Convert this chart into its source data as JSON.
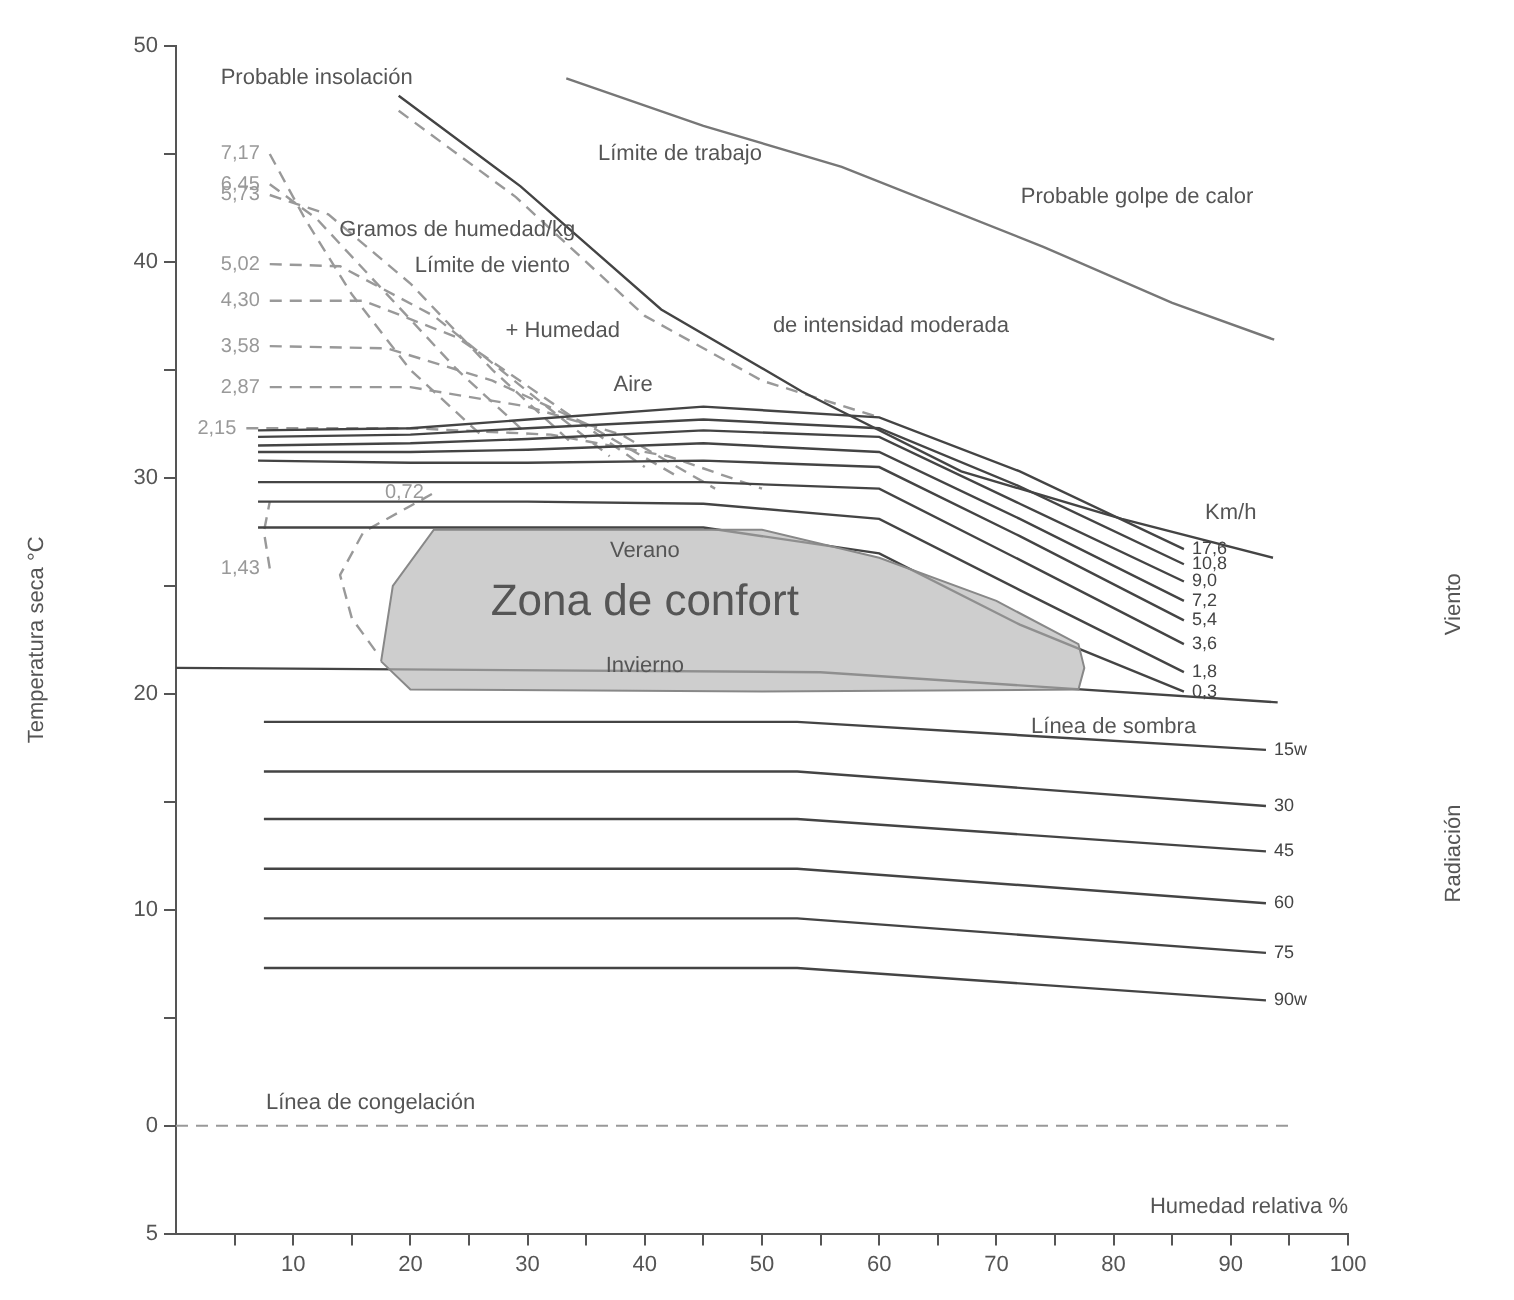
{
  "chart_data": {
    "type": "line",
    "xlabel": "Humedad relativa %",
    "ylabel": "Temperatura seca °C",
    "xlim": [
      0,
      100
    ],
    "ylim": [
      -5,
      50
    ],
    "xticks": [
      {
        "value": 5,
        "label": null
      },
      10,
      {
        "value": 15,
        "label": null
      },
      20,
      {
        "value": 25,
        "label": null
      },
      30,
      {
        "value": 35,
        "label": null
      },
      40,
      {
        "value": 45,
        "label": null
      },
      50,
      {
        "value": 55,
        "label": null
      },
      60,
      {
        "value": 65,
        "label": null
      },
      70,
      {
        "value": 75,
        "label": null
      },
      80,
      {
        "value": 85,
        "label": null
      },
      90,
      {
        "value": 95,
        "label": null
      },
      100
    ],
    "yticks": [
      {
        "value": -5,
        "label": "5"
      },
      0,
      {
        "value": 5,
        "label": null
      },
      10,
      {
        "value": 15,
        "label": null
      },
      20,
      {
        "value": 25,
        "label": null
      },
      30,
      {
        "value": 35,
        "label": null
      },
      40,
      {
        "value": 45,
        "label": null
      },
      50
    ],
    "legend": false,
    "series": [
      {
        "type": "area",
        "color": "#b5b5b5",
        "x": [
          17.5,
          18.5,
          22,
          50,
          60,
          70,
          77,
          77.5,
          77,
          50,
          20,
          17.5
        ],
        "values": [
          21.5,
          25,
          27.6,
          27.6,
          26.3,
          24.3,
          22.3,
          21.2,
          20.2,
          20.1,
          20.2,
          21.5
        ]
      },
      {
        "name": "17,6",
        "color": "#444444",
        "x": [
          7,
          20,
          30,
          45,
          60,
          72,
          86
        ],
        "values": [
          32.2,
          32.3,
          32.7,
          33.3,
          32.8,
          30.3,
          26.7
        ]
      },
      {
        "name": "10,8",
        "color": "#444444",
        "x": [
          7,
          20,
          30,
          45,
          60,
          72,
          86
        ],
        "values": [
          31.9,
          32.0,
          32.3,
          32.7,
          32.3,
          29.6,
          26.0
        ]
      },
      {
        "name": "9,0",
        "color": "#444444",
        "x": [
          7,
          20,
          30,
          45,
          60,
          72,
          86
        ],
        "values": [
          31.5,
          31.6,
          31.8,
          32.2,
          31.9,
          28.8,
          25.2
        ]
      },
      {
        "name": "7,2",
        "color": "#444444",
        "x": [
          7,
          20,
          30,
          45,
          60,
          72,
          86
        ],
        "values": [
          31.2,
          31.2,
          31.3,
          31.6,
          31.2,
          28.1,
          24.3
        ]
      },
      {
        "name": "5,4",
        "color": "#444444",
        "x": [
          7,
          20,
          30,
          45,
          60,
          72,
          86
        ],
        "values": [
          30.8,
          30.7,
          30.7,
          30.8,
          30.5,
          27.3,
          23.4
        ]
      },
      {
        "name": "3,6",
        "color": "#444444",
        "x": [
          7,
          20,
          30,
          45,
          60,
          72,
          86
        ],
        "values": [
          29.8,
          29.8,
          29.8,
          29.8,
          29.5,
          26.2,
          22.3
        ]
      },
      {
        "name": "1,8",
        "color": "#444444",
        "x": [
          7,
          20,
          30,
          45,
          60,
          72,
          86
        ],
        "values": [
          28.9,
          28.9,
          28.9,
          28.8,
          28.1,
          24.8,
          21.0
        ]
      },
      {
        "name": "0,3",
        "color": "#444444",
        "x": [
          7,
          20,
          30,
          45,
          60,
          72,
          86
        ],
        "values": [
          27.7,
          27.7,
          27.7,
          27.7,
          26.5,
          23.2,
          20.1
        ]
      },
      {
        "color": "#444444",
        "x": [
          0,
          55,
          94
        ],
        "values": [
          21.2,
          21.0,
          19.6
        ]
      },
      {
        "name": "15w",
        "color": "#444444",
        "x": [
          7.5,
          53,
          93
        ],
        "values": [
          18.7,
          18.7,
          17.4
        ]
      },
      {
        "name": "30",
        "color": "#444444",
        "x": [
          7.5,
          53,
          93
        ],
        "values": [
          16.4,
          16.4,
          14.8
        ]
      },
      {
        "name": "45",
        "color": "#444444",
        "x": [
          7.5,
          53,
          93
        ],
        "values": [
          14.2,
          14.2,
          12.7
        ]
      },
      {
        "name": "60",
        "color": "#444444",
        "x": [
          7.5,
          53,
          93
        ],
        "values": [
          11.9,
          11.9,
          10.3
        ]
      },
      {
        "name": "75",
        "color": "#444444",
        "x": [
          7.5,
          53,
          93
        ],
        "values": [
          9.6,
          9.6,
          8.0
        ]
      },
      {
        "name": "90w",
        "color": "#444444",
        "x": [
          7.5,
          53,
          93
        ],
        "values": [
          7.3,
          7.3,
          5.8
        ]
      },
      {
        "color": "#444444",
        "x": [
          19,
          29.4,
          41.4,
          53.4,
          67,
          80.7,
          93.6
        ],
        "values": [
          47.7,
          43.5,
          37.8,
          34,
          30.3,
          28.1,
          26.3
        ]
      },
      {
        "color": "#999999",
        "line_style": "dashed",
        "x": [
          19,
          29,
          40,
          50,
          60
        ],
        "values": [
          47,
          43,
          37.5,
          34.5,
          32.8
        ]
      },
      {
        "color": "#777777",
        "x": [
          33.3,
          45,
          56.8,
          74,
          85,
          93.7
        ],
        "values": [
          48.5,
          46.3,
          44.4,
          40.7,
          38.1,
          36.4
        ]
      },
      {
        "name": "7,17",
        "color": "#999999",
        "line_style": "dashed",
        "x": [
          8,
          11,
          15,
          20,
          26
        ],
        "values": [
          45,
          42,
          38.5,
          35,
          32
        ]
      },
      {
        "name": "6,45",
        "color": "#999999",
        "line_style": "dashed",
        "x": [
          8,
          12,
          18,
          24,
          30
        ],
        "values": [
          43.6,
          42,
          38.5,
          35,
          32
        ]
      },
      {
        "name": "5,73",
        "color": "#999999",
        "line_style": "dashed",
        "x": [
          8,
          13,
          20,
          27,
          34
        ],
        "values": [
          43.1,
          42.2,
          39,
          35,
          31.5
        ]
      },
      {
        "name": "5,02",
        "color": "#999999",
        "line_style": "dashed",
        "x": [
          8,
          14,
          22,
          30,
          37
        ],
        "values": [
          39.9,
          39.8,
          37.5,
          34,
          31
        ]
      },
      {
        "name": "4,30",
        "color": "#999999",
        "line_style": "dashed",
        "x": [
          8,
          16,
          24,
          32,
          40
        ],
        "values": [
          38.2,
          38.2,
          36.5,
          33.5,
          30.5
        ]
      },
      {
        "name": "3,58",
        "color": "#999999",
        "line_style": "dashed",
        "x": [
          8,
          18,
          27,
          35,
          43
        ],
        "values": [
          36.1,
          36,
          34.5,
          32.5,
          30
        ]
      },
      {
        "name": "2,87",
        "color": "#999999",
        "line_style": "dashed",
        "x": [
          8,
          20,
          30,
          38,
          46
        ],
        "values": [
          34.2,
          34.2,
          33.3,
          32,
          29.5
        ]
      },
      {
        "name": "2,15",
        "color": "#999999",
        "line_style": "dashed",
        "x": [
          6,
          20,
          32,
          42,
          50
        ],
        "values": [
          32.3,
          32.3,
          32,
          31,
          29.5
        ]
      },
      {
        "name": "1,43",
        "color": "#999999",
        "line_style": "dashed",
        "x": [
          8,
          7.5,
          8
        ],
        "values": [
          25.8,
          27.5,
          28.9
        ]
      },
      {
        "name": "0,72",
        "color": "#999999",
        "line_style": "dashed",
        "x": [
          17,
          15,
          14,
          16,
          22
        ],
        "values": [
          22,
          23.5,
          25.5,
          27.5,
          29.3
        ]
      }
    ],
    "ref_lines": [
      {
        "axis": "y",
        "value": 0,
        "label": "Línea de congelación",
        "color": "#999999",
        "line_style": "dashed"
      }
    ],
    "annotations": [
      "Probable insolación",
      "Límite de trabajo",
      "de intensidad moderada",
      "Límite de viento",
      "+ Humedad",
      "Gramos de humedad/kg",
      "Aire",
      "Probable golpe de calor",
      "Verano",
      "Zona de confort",
      "Invierno",
      "Km/h",
      "Línea de sombra",
      "Viento",
      "Radiación"
    ]
  }
}
